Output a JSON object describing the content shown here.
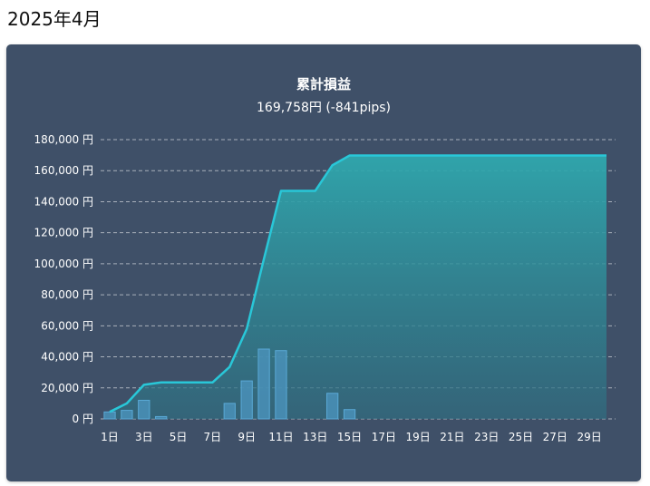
{
  "page": {
    "title": "2025年4月"
  },
  "chart_data": {
    "type": "line",
    "title": "累計損益",
    "subtitle": "169,758円 (-841pips)",
    "y_unit": "円",
    "ylim": [
      0,
      180000
    ],
    "y_ticks": [
      0,
      20000,
      40000,
      60000,
      80000,
      100000,
      120000,
      140000,
      160000,
      180000
    ],
    "y_tick_labels": [
      "0 円",
      "20,000 円",
      "40,000 円",
      "60,000 円",
      "80,000 円",
      "100,000 円",
      "120,000 円",
      "140,000 円",
      "160,000 円",
      "180,000 円"
    ],
    "x": [
      1,
      2,
      3,
      4,
      5,
      6,
      7,
      8,
      9,
      10,
      11,
      12,
      13,
      14,
      15,
      16,
      17,
      18,
      19,
      20,
      21,
      22,
      23,
      24,
      25,
      26,
      27,
      28,
      29,
      30
    ],
    "x_tick_labels": [
      "1日",
      "3日",
      "5日",
      "7日",
      "9日",
      "11日",
      "13日",
      "15日",
      "17日",
      "19日",
      "21日",
      "23日",
      "25日",
      "27日",
      "29日"
    ],
    "x_tick_values": [
      1,
      3,
      5,
      7,
      9,
      11,
      13,
      15,
      17,
      19,
      21,
      23,
      25,
      27,
      29
    ],
    "grid": true,
    "series": [
      {
        "kind": "line",
        "color": "#29c7d8",
        "values": [
          4500,
          10000,
          22000,
          23500,
          23500,
          23500,
          23500,
          33500,
          58000,
          103000,
          147000,
          147000,
          147000,
          163500,
          169758,
          169758,
          169758,
          169758,
          169758,
          169758,
          169758,
          169758,
          169758,
          169758,
          169758,
          169758,
          169758,
          169758,
          169758,
          169758
        ]
      },
      {
        "kind": "bar",
        "color": "#4a90b8",
        "values": [
          4500,
          5500,
          12000,
          1500,
          0,
          0,
          0,
          10000,
          24500,
          45000,
          44000,
          0,
          0,
          16500,
          6000,
          0,
          0,
          0,
          0,
          0,
          0,
          0,
          0,
          0,
          0,
          0,
          0,
          0,
          0,
          0
        ]
      }
    ]
  }
}
